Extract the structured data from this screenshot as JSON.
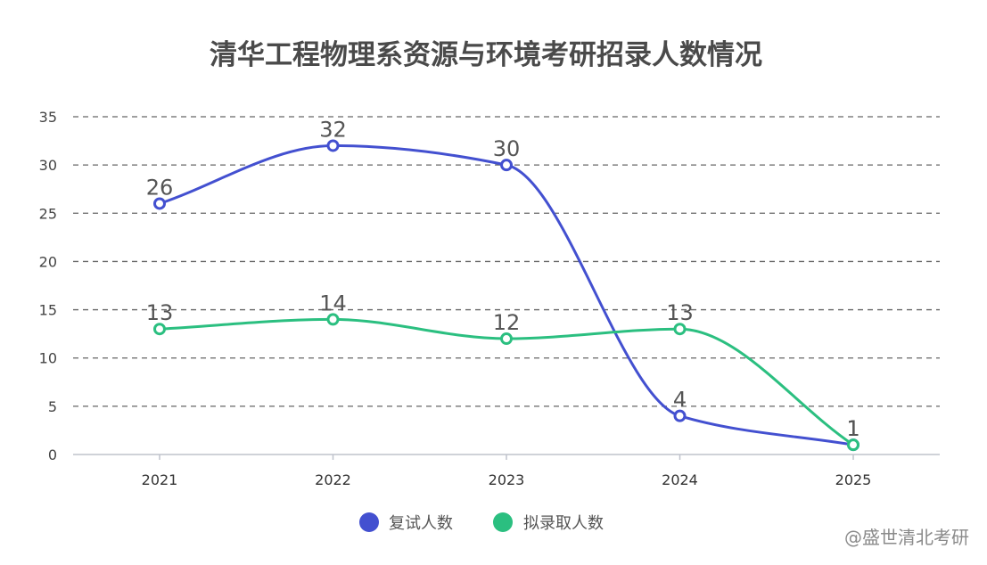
{
  "chart_data": {
    "type": "line",
    "title": "清华工程物理系资源与环境考研招录人数情况",
    "categories": [
      "2021",
      "2022",
      "2023",
      "2024",
      "2025"
    ],
    "ylim": [
      0,
      35
    ],
    "yticks": [
      0,
      5,
      10,
      15,
      20,
      25,
      30,
      35
    ],
    "grid": true,
    "legend_position": "bottom",
    "series": [
      {
        "name": "复试人数",
        "color": "#4350d0",
        "values": [
          26,
          32,
          30,
          4,
          1
        ]
      },
      {
        "name": "拟录取人数",
        "color": "#2bbf80",
        "values": [
          13,
          14,
          12,
          13,
          1
        ]
      }
    ]
  },
  "watermark": "@盛世清北考研"
}
